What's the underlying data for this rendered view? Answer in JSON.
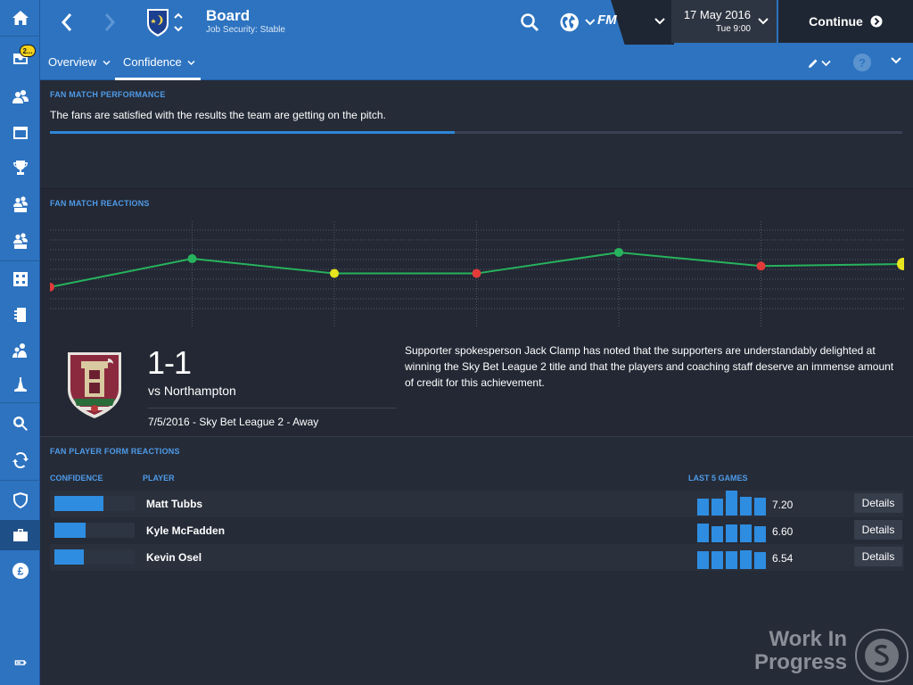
{
  "sidebar": {
    "items": [
      {
        "icon": "home-icon"
      },
      {
        "icon": "inbox-icon",
        "badge": "2..."
      },
      {
        "icon": "squad-icon"
      },
      {
        "icon": "schedule-icon"
      },
      {
        "icon": "trophy-icon"
      },
      {
        "icon": "u21-squad-icon",
        "sub": "U21"
      },
      {
        "icon": "u18-squad-icon",
        "sub": "U18"
      },
      {
        "icon": "tactics-icon"
      },
      {
        "icon": "training-icon"
      },
      {
        "icon": "staff-icon"
      },
      {
        "icon": "medical-icon"
      },
      {
        "icon": "scouting-icon"
      },
      {
        "icon": "transfers-icon"
      },
      {
        "icon": "club-vision-icon"
      },
      {
        "icon": "briefcase-icon"
      },
      {
        "icon": "finances-icon"
      },
      {
        "icon": "battery-icon"
      }
    ]
  },
  "header": {
    "title": "Board",
    "subtitle": "Job Security: Stable",
    "fm_logo": "FM",
    "date": "17 May 2016",
    "time": "Tue 9:00",
    "continue_label": "Continue"
  },
  "tabs": [
    {
      "label": "Overview",
      "active": false
    },
    {
      "label": "Confidence",
      "active": true
    }
  ],
  "fan_performance": {
    "title": "FAN MATCH PERFORMANCE",
    "text": "The fans are satisfied with the results the team are getting on the pitch.",
    "progress": 0.475,
    "progress_color": "#2e86d8"
  },
  "fan_reactions": {
    "title": "FAN MATCH REACTIONS",
    "points": [
      {
        "value": 0.45,
        "color": "#e33a3a"
      },
      {
        "value": 0.72,
        "color": "#27b35d"
      },
      {
        "value": 0.58,
        "color": "#e8e51e"
      },
      {
        "value": 0.58,
        "color": "#e33a3a"
      },
      {
        "value": 0.78,
        "color": "#27b35d"
      },
      {
        "value": 0.65,
        "color": "#e33a3a"
      },
      {
        "value": 0.67,
        "color": "#e8e51e"
      }
    ],
    "line_color": "#27b35d"
  },
  "match": {
    "score": "1-1",
    "opponent": "vs Northampton",
    "info": "7/5/2016 - Sky Bet League 2 - Away",
    "comment": "Supporter spokesperson Jack Clamp has noted that the supporters are understandably delighted at winning the Sky Bet League 2 title and that the players and coaching staff deserve an immense amount of credit for this achievement."
  },
  "player_form": {
    "title": "FAN PLAYER FORM REACTIONS",
    "col_confidence": "CONFIDENCE",
    "col_player": "PLAYER",
    "col_last5": "LAST 5 GAMES",
    "details_label": "Details",
    "players": [
      {
        "name": "Matt Tubbs",
        "confidence": 0.61,
        "rating": "7.20",
        "last5": [
          0.68,
          0.68,
          1.0,
          0.75,
          0.7
        ]
      },
      {
        "name": "Kyle McFadden",
        "confidence": 0.39,
        "rating": "6.60",
        "last5": [
          0.75,
          0.65,
          0.7,
          0.7,
          0.65
        ]
      },
      {
        "name": "Kevin Osel",
        "confidence": 0.37,
        "rating": "6.54",
        "last5": [
          0.7,
          0.7,
          0.7,
          0.75,
          0.68
        ]
      }
    ]
  },
  "watermark": {
    "line1": "Work In",
    "line2": "Progress"
  }
}
